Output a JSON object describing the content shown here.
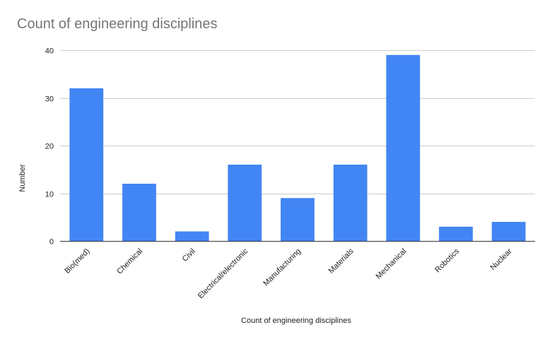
{
  "chart_data": {
    "type": "bar",
    "title": "Count of engineering disciplines",
    "xlabel": "Count of engineering disciplines",
    "ylabel": "Number",
    "categories": [
      "Bio(med)",
      "Chemical",
      "Civil",
      "Electrical/electronic",
      "Manufacturing",
      "Materials",
      "Mechanical",
      "Robotics",
      "Nuclear"
    ],
    "values": [
      32,
      12,
      2,
      16,
      9,
      16,
      39,
      3,
      4
    ],
    "ylim": [
      0,
      40
    ],
    "yticks": [
      0,
      10,
      20,
      30,
      40
    ],
    "grid": true,
    "legend": "none",
    "bar_color": "#4285f4"
  }
}
